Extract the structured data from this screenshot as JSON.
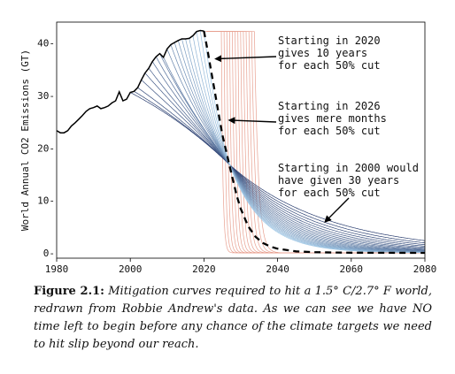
{
  "chart_data": {
    "type": "line",
    "title": "",
    "xlabel": "",
    "ylabel": "World Annual CO2 Emissions (GT)",
    "xlim": [
      1980,
      2080
    ],
    "ylim": [
      -1,
      44
    ],
    "x_ticks": [
      1980,
      2000,
      2020,
      2040,
      2060,
      2080
    ],
    "x_tick_labels": [
      "1980",
      "2000",
      "2020",
      "2040",
      "2060",
      "2080"
    ],
    "y_ticks": [
      0,
      10,
      20,
      30,
      40
    ],
    "y_tick_labels": [
      "0-",
      "10-",
      "20-",
      "30-",
      "40-"
    ],
    "grid": false,
    "historical": {
      "x": [
        1980,
        1981,
        1982,
        1983,
        1984,
        1985,
        1986,
        1987,
        1988,
        1989,
        1990,
        1991,
        1992,
        1993,
        1994,
        1995,
        1996,
        1997,
        1998,
        1999,
        2000,
        2001,
        2002,
        2003,
        2004,
        2005,
        2006,
        2007,
        2008,
        2009,
        2010,
        2011,
        2012,
        2013,
        2014,
        2015,
        2016,
        2017,
        2018,
        2019,
        2020
      ],
      "y": [
        23.3,
        22.9,
        22.9,
        23.3,
        24.2,
        24.8,
        25.5,
        26.2,
        27.0,
        27.5,
        27.7,
        28.0,
        27.5,
        27.7,
        28.0,
        28.6,
        29.0,
        30.7,
        29.0,
        29.3,
        30.6,
        30.8,
        31.5,
        33.0,
        34.3,
        35.2,
        36.5,
        37.4,
        38.0,
        37.3,
        38.9,
        39.7,
        40.1,
        40.5,
        40.8,
        40.8,
        40.9,
        41.4,
        42.2,
        42.4,
        42.3
      ]
    },
    "dashed_curve": {
      "x": [
        2020,
        2021,
        2022,
        2023,
        2024,
        2025,
        2026,
        2027,
        2028,
        2029,
        2030,
        2032,
        2034,
        2036,
        2038,
        2040,
        2045,
        2050,
        2055,
        2060,
        2070,
        2080
      ],
      "y": [
        42.3,
        38.5,
        34.5,
        30.5,
        26.5,
        22.5,
        19.5,
        16.5,
        13.5,
        10.7,
        8.4,
        5.1,
        3.1,
        1.9,
        1.2,
        0.8,
        0.3,
        0.15,
        0.08,
        0.05,
        0.02,
        0.01
      ]
    },
    "pivot": {
      "x": 2027,
      "y": 16.8
    },
    "curve_families": [
      {
        "color": "#e8a090",
        "count": 13,
        "start_years": [
          2021,
          2022,
          2023,
          2024,
          2025,
          2026,
          2027,
          2026.5,
          2025.5,
          2024.5,
          2023.5,
          2022.5,
          2021.5
        ]
      },
      {
        "color": "#4a6a9a",
        "count": 21,
        "start_years": [
          2000,
          2001,
          2002,
          2003,
          2004,
          2005,
          2006,
          2007,
          2008,
          2009,
          2010,
          2011,
          2012,
          2013,
          2014,
          2015,
          2016,
          2017,
          2018,
          2019,
          2020
        ]
      }
    ],
    "annotations": [
      {
        "lines": [
          "Starting in 2020",
          "gives 10 years",
          "for each 50% cut"
        ],
        "arrow_to": {
          "x": 2023.3,
          "y": 37.0
        }
      },
      {
        "lines": [
          "Starting in 2026",
          "gives mere months",
          "for each 50% cut"
        ],
        "arrow_to": {
          "x": 2027.0,
          "y": 25.3
        }
      },
      {
        "lines": [
          "Starting in 2000 would",
          "have given 30 years",
          "for each 50% cut"
        ],
        "arrow_to": {
          "x": 2053.0,
          "y": 6.0
        }
      }
    ]
  },
  "caption": {
    "label": "Figure 2.1:",
    "text": "Mitigation curves required to hit a 1.5° C/2.7° F world, redrawn from Robbie Andrew's data. As we can see we have NO time left to begin before any chance of the climate targets we need to hit slip beyond our reach."
  }
}
